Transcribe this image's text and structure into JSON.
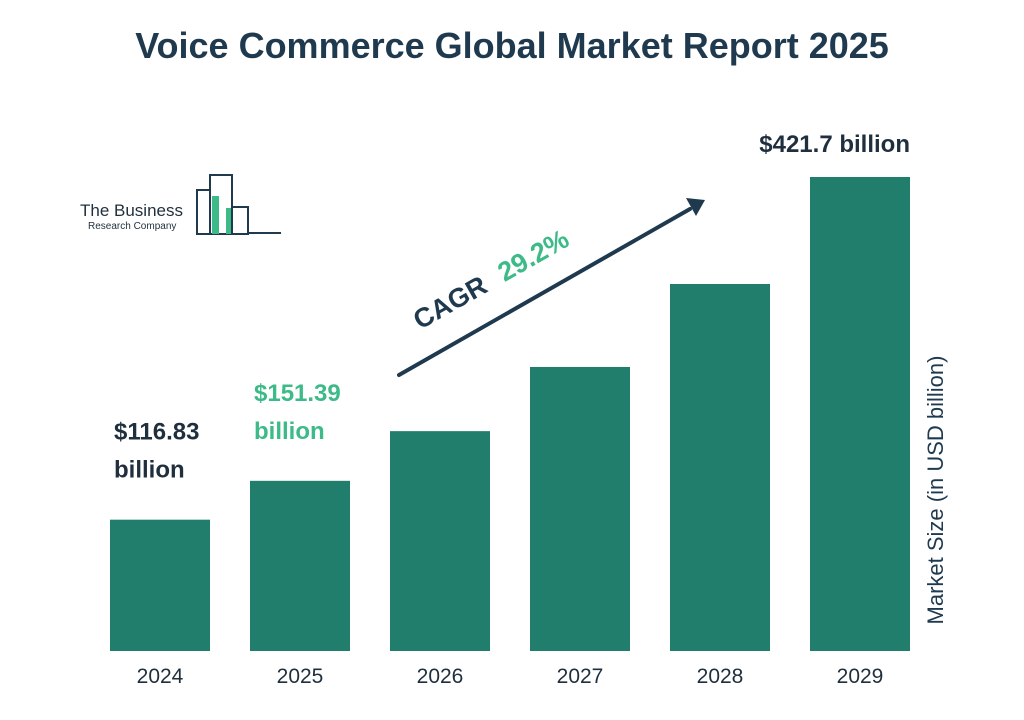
{
  "colors": {
    "title": "#1f3a4f",
    "bar": "#217d6c",
    "highlight": "#3cbb88",
    "text": "#1f2f3d",
    "logo_accent": "#3cbb88"
  },
  "logo": {
    "name": "The Business",
    "subname": "Research Company"
  },
  "cagr": {
    "label": "CAGR",
    "value": "29.2%"
  },
  "chart_data": {
    "type": "bar",
    "title": "Voice Commerce Global Market Report 2025",
    "xlabel": "",
    "ylabel": "Market Size (in USD billion)",
    "categories": [
      "2024",
      "2025",
      "2026",
      "2027",
      "2028",
      "2029"
    ],
    "values": [
      116.83,
      151.39,
      195.6,
      252.7,
      326.5,
      421.7
    ],
    "ylim": [
      0,
      421.7
    ],
    "grid": false,
    "legend": "none",
    "data_labels": [
      {
        "index": 0,
        "lines": [
          "$116.83",
          "billion"
        ],
        "highlight": false
      },
      {
        "index": 1,
        "lines": [
          "$151.39",
          "billion"
        ],
        "highlight": true
      },
      {
        "index": 5,
        "lines": [
          "$421.7 billion"
        ],
        "highlight": false
      }
    ]
  }
}
